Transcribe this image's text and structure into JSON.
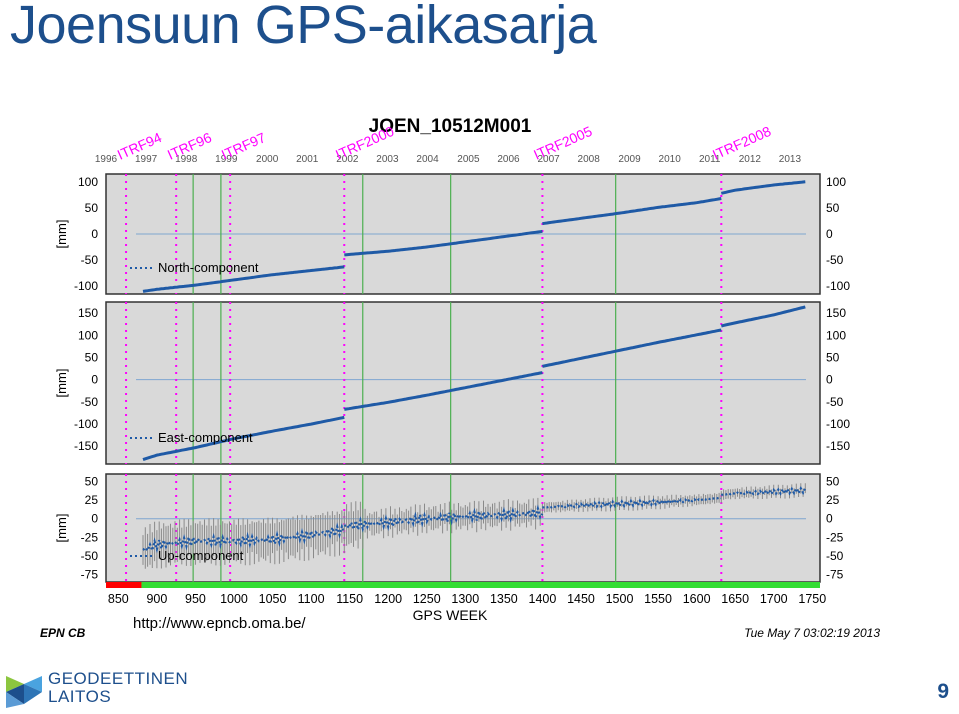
{
  "slide": {
    "title": "Joensuun GPS-aikasarja",
    "url": "http://www.epncb.oma.be/",
    "page_number": "9",
    "organization": {
      "line1": "GEODEETTINEN",
      "line2": "LAITOS"
    }
  },
  "colors": {
    "title": "#1d4f8c",
    "series": "#1f5aa6",
    "panel_bg": "#d9d9d9",
    "itrf_line": "#ff00ff",
    "green_line": "#4caf50",
    "error_bar": "#8a8a8a"
  },
  "chart_data": {
    "type": "scatter",
    "title": "JOEN_10512M001",
    "xlabel": "GPS WEEK",
    "xlim": [
      834,
      1760
    ],
    "x_ticks": [
      850,
      900,
      950,
      1000,
      1050,
      1100,
      1150,
      1200,
      1250,
      1300,
      1350,
      1400,
      1450,
      1500,
      1550,
      1600,
      1650,
      1700,
      1750
    ],
    "year_ticks": [
      {
        "label": "1996",
        "week": 834
      },
      {
        "label": "1997",
        "week": 886
      },
      {
        "label": "1998",
        "week": 938
      },
      {
        "label": "1999",
        "week": 990
      },
      {
        "label": "2000",
        "week": 1043
      },
      {
        "label": "2001",
        "week": 1095
      },
      {
        "label": "2002",
        "week": 1147
      },
      {
        "label": "2003",
        "week": 1199
      },
      {
        "label": "2004",
        "week": 1251
      },
      {
        "label": "2005",
        "week": 1304
      },
      {
        "label": "2006",
        "week": 1356
      },
      {
        "label": "2007",
        "week": 1408
      },
      {
        "label": "2008",
        "week": 1460
      },
      {
        "label": "2009",
        "week": 1513
      },
      {
        "label": "2010",
        "week": 1565
      },
      {
        "label": "2011",
        "week": 1617
      },
      {
        "label": "2012",
        "week": 1669
      },
      {
        "label": "2013",
        "week": 1721
      }
    ],
    "reference_frames": [
      {
        "label": "ITRF94",
        "week": 860
      },
      {
        "label": "ITRF96",
        "week": 925
      },
      {
        "label": "ITRF97",
        "week": 995
      },
      {
        "label": "ITRF2000",
        "week": 1143
      },
      {
        "label": "ITRF2005",
        "week": 1400
      },
      {
        "label": "ITRF2008",
        "week": 1632
      }
    ],
    "green_lines": [
      947,
      983,
      1167,
      1281,
      1495
    ],
    "quality_bar": [
      {
        "from": 834,
        "to": 880,
        "color": "red"
      },
      {
        "from": 880,
        "to": 1760,
        "color": "green"
      }
    ],
    "footer_left": "EPN CB",
    "footer_right": "Tue May  7 03:02:19 2013",
    "panels": [
      {
        "name": "North-component",
        "ylabel": "[mm]",
        "ylim": [
          -115,
          115
        ],
        "y_ticks": [
          100,
          50,
          0,
          -50,
          -100
        ],
        "y_tick_labels": [
          "100",
          "50",
          "0",
          "-50",
          "-100"
        ],
        "segments": [
          {
            "x": [
              882,
              900,
              950,
              1000,
              1050,
              1100,
              1143
            ],
            "y": [
              -110,
              -106,
              -98,
              -88,
              -78,
              -70,
              -63
            ]
          },
          {
            "x": [
              1143,
              1200,
              1250,
              1300,
              1350,
              1400
            ],
            "y": [
              -40,
              -33,
              -25,
              -15,
              -5,
              5
            ]
          },
          {
            "x": [
              1400,
              1450,
              1500,
              1550,
              1600,
              1632
            ],
            "y": [
              20,
              30,
              40,
              51,
              60,
              68
            ]
          },
          {
            "x": [
              1632,
              1650,
              1700,
              1741
            ],
            "y": [
              78,
              84,
              94,
              100
            ]
          }
        ]
      },
      {
        "name": "East-component",
        "ylabel": "[mm]",
        "ylim": [
          -190,
          175
        ],
        "y_ticks": [
          150,
          100,
          50,
          0,
          -50,
          -100,
          -150
        ],
        "y_tick_labels": [
          "150",
          "100",
          "50",
          "0",
          "-50",
          "-100",
          "-150"
        ],
        "segments": [
          {
            "x": [
              882,
              900,
              950,
              1000,
              1050,
              1100,
              1143
            ],
            "y": [
              -180,
              -170,
              -153,
              -133,
              -116,
              -100,
              -85
            ]
          },
          {
            "x": [
              1143,
              1200,
              1250,
              1300,
              1350,
              1400
            ],
            "y": [
              -67,
              -51,
              -35,
              -18,
              -1,
              16
            ]
          },
          {
            "x": [
              1400,
              1450,
              1500,
              1550,
              1600,
              1632
            ],
            "y": [
              30,
              48,
              66,
              84,
              101,
              112
            ]
          },
          {
            "x": [
              1632,
              1650,
              1700,
              1741
            ],
            "y": [
              121,
              128,
              146,
              164
            ]
          }
        ]
      },
      {
        "name": "Up-component",
        "ylabel": "[mm]",
        "ylim": [
          -85,
          60
        ],
        "y_ticks": [
          50,
          25,
          0,
          -25,
          -50,
          -75
        ],
        "y_tick_labels": [
          "50",
          "25",
          "0",
          "-25",
          "-50",
          "-75"
        ],
        "error_bars": true,
        "segments": [
          {
            "x": [
              882,
              900,
              950,
              1000,
              1050,
              1100,
              1143
            ],
            "y": [
              -42,
              -35,
              -30,
              -30,
              -28,
              -22,
              -15
            ]
          },
          {
            "x": [
              1143,
              1200,
              1250,
              1300,
              1350,
              1400
            ],
            "y": [
              -10,
              -5,
              0,
              3,
              5,
              8
            ]
          },
          {
            "x": [
              1400,
              1450,
              1500,
              1550,
              1600,
              1632
            ],
            "y": [
              15,
              18,
              20,
              22,
              25,
              28
            ]
          },
          {
            "x": [
              1632,
              1650,
              1700,
              1741
            ],
            "y": [
              32,
              34,
              36,
              38
            ]
          }
        ]
      }
    ]
  }
}
